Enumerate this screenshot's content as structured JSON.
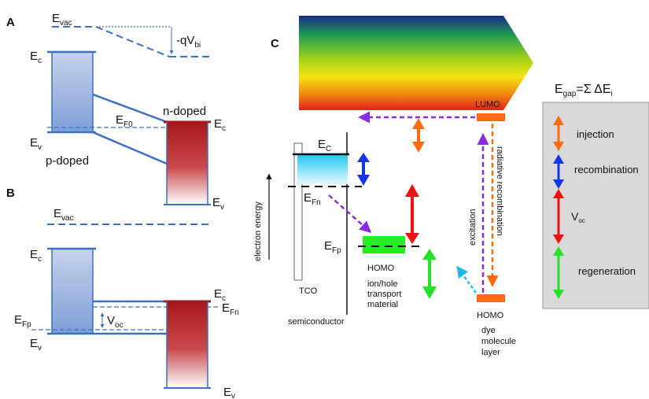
{
  "panelA": {
    "letter": "A",
    "e_vac": "E",
    "e_vac_sub": "vac",
    "qvbi": "-qV",
    "qvbi_sub": "bi",
    "ec_left": "E",
    "ec_left_sub": "c",
    "ev_left": "E",
    "ev_left_sub": "v",
    "p_doped": "p-doped",
    "n_doped": "n-doped",
    "ef0": "E",
    "ef0_sub": "F0",
    "ec_right": "E",
    "ec_right_sub": "c",
    "ev_right": "E",
    "ev_right_sub": "v"
  },
  "panelB": {
    "letter": "B",
    "e_vac": "E",
    "e_vac_sub": "vac",
    "ec_left": "E",
    "ec_left_sub": "c",
    "efp": "E",
    "efp_sub": "Fp",
    "ev_left": "E",
    "ev_left_sub": "v",
    "voc": "V",
    "voc_sub": "oc",
    "ec_right": "E",
    "ec_right_sub": "c",
    "efn": "E",
    "efn_sub": "Fn",
    "ev_right": "E",
    "ev_right_sub": "v"
  },
  "panelC": {
    "letter": "C",
    "lumo": "LUMO",
    "homo_dye": "HOMO",
    "homo_htm": "HOMO",
    "ec": "E",
    "ec_sub": "C",
    "efn": "E",
    "efn_sub": "Fn",
    "efp": "E",
    "efp_sub": "Fp",
    "tco": "TCO",
    "semiconductor": "semiconductor",
    "electron_energy": "electron energy",
    "htm_lines": [
      "ion/hole",
      "transport",
      "material"
    ],
    "dye_lines": [
      "dye",
      "molecule",
      "layer"
    ],
    "excitation": "excitation",
    "radiative": "radiative recombination"
  },
  "legend": {
    "title": "E",
    "title_sub": "gap",
    "title_rest": "=Σ ΔE",
    "title_rest_sub": "i",
    "injection": "injection",
    "recombination": "recombination",
    "voc": "V",
    "voc_sub": "oc",
    "regeneration": "regeneration"
  },
  "colors": {
    "band_blue": "#3e6fc4",
    "n_red": "#a8161b",
    "purple": "#8a2be2",
    "orange": "#ff6a13",
    "blue_arrow": "#1436e6",
    "red_arrow": "#ee1111",
    "green_arrow": "#27e02a",
    "cyan_arrow": "#23b8e8",
    "green_box": "#22ee22",
    "legend_bg": "#d9d9d9"
  }
}
